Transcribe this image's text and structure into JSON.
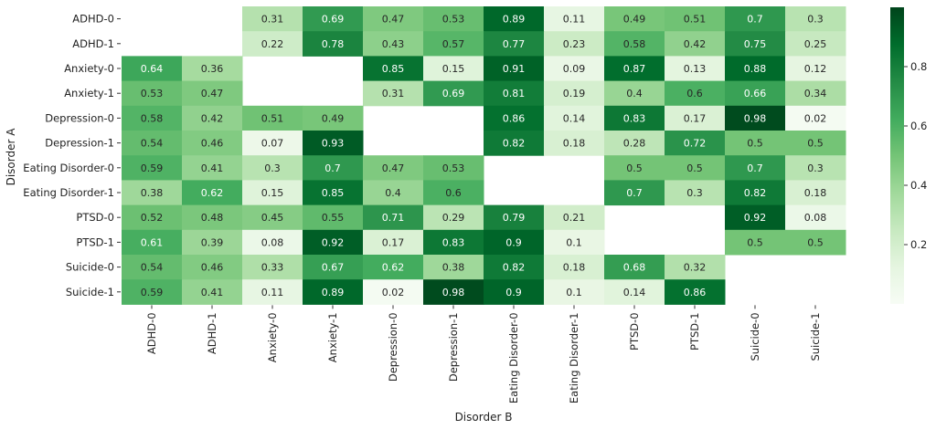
{
  "chart_data": {
    "type": "heatmap",
    "xlabel": "Disorder B",
    "ylabel": "Disorder A",
    "x_categories": [
      "ADHD-0",
      "ADHD-1",
      "Anxiety-0",
      "Anxiety-1",
      "Depression-0",
      "Depression-1",
      "Eating Disorder-0",
      "Eating Disorder-1",
      "PTSD-0",
      "PTSD-1",
      "Suicide-0",
      "Suicide-1"
    ],
    "y_categories": [
      "ADHD-0",
      "ADHD-1",
      "Anxiety-0",
      "Anxiety-1",
      "Depression-0",
      "Depression-1",
      "Eating Disorder-0",
      "Eating Disorder-1",
      "PTSD-0",
      "PTSD-1",
      "Suicide-0",
      "Suicide-1"
    ],
    "values": [
      [
        null,
        null,
        0.31,
        0.69,
        0.47,
        0.53,
        0.89,
        0.11,
        0.49,
        0.51,
        0.7,
        0.3
      ],
      [
        null,
        null,
        0.22,
        0.78,
        0.43,
        0.57,
        0.77,
        0.23,
        0.58,
        0.42,
        0.75,
        0.25
      ],
      [
        0.64,
        0.36,
        null,
        null,
        0.85,
        0.15,
        0.91,
        0.09,
        0.87,
        0.13,
        0.88,
        0.12
      ],
      [
        0.53,
        0.47,
        null,
        null,
        0.31,
        0.69,
        0.81,
        0.19,
        0.4,
        0.6,
        0.66,
        0.34
      ],
      [
        0.58,
        0.42,
        0.51,
        0.49,
        null,
        null,
        0.86,
        0.14,
        0.83,
        0.17,
        0.98,
        0.02
      ],
      [
        0.54,
        0.46,
        0.07,
        0.93,
        null,
        null,
        0.82,
        0.18,
        0.28,
        0.72,
        0.5,
        0.5
      ],
      [
        0.59,
        0.41,
        0.3,
        0.7,
        0.47,
        0.53,
        null,
        null,
        0.5,
        0.5,
        0.7,
        0.3
      ],
      [
        0.38,
        0.62,
        0.15,
        0.85,
        0.4,
        0.6,
        null,
        null,
        0.7,
        0.3,
        0.82,
        0.18
      ],
      [
        0.52,
        0.48,
        0.45,
        0.55,
        0.71,
        0.29,
        0.79,
        0.21,
        null,
        null,
        0.92,
        0.08
      ],
      [
        0.61,
        0.39,
        0.08,
        0.92,
        0.17,
        0.83,
        0.9,
        0.1,
        null,
        null,
        0.5,
        0.5
      ],
      [
        0.54,
        0.46,
        0.33,
        0.67,
        0.62,
        0.38,
        0.82,
        0.18,
        0.68,
        0.32,
        null,
        null
      ],
      [
        0.59,
        0.41,
        0.11,
        0.89,
        0.02,
        0.98,
        0.9,
        0.1,
        0.14,
        0.86,
        null,
        null
      ]
    ],
    "colormap": "Greens",
    "color_range": [
      0,
      1
    ],
    "colorbar_ticks": [
      "0.2",
      "0.4",
      "0.6",
      "0.8"
    ],
    "colorbar_tick_values": [
      0.2,
      0.4,
      0.6,
      0.8
    ],
    "annotated": true,
    "grid": false
  }
}
